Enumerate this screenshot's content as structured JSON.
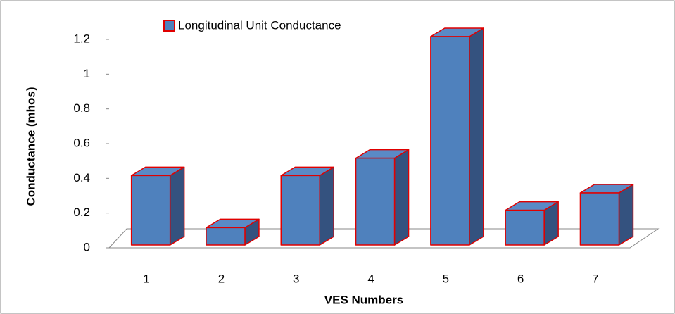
{
  "chart_data": {
    "type": "bar3d",
    "x_label": "VES Numbers",
    "y_label": "Conductance (mhos)",
    "categories": [
      "1",
      "2",
      "3",
      "4",
      "5",
      "6",
      "7"
    ],
    "series": [
      {
        "name": "Longitudinal Unit Conductance",
        "color": "#4f81bd",
        "values": [
          0.4,
          0.1,
          0.4,
          0.5,
          1.2,
          0.2,
          0.3
        ]
      }
    ],
    "ylim": [
      0,
      1.2
    ],
    "yticks": [
      0,
      0.2,
      0.4,
      0.6,
      0.8,
      1,
      1.2
    ],
    "legend": "top"
  }
}
